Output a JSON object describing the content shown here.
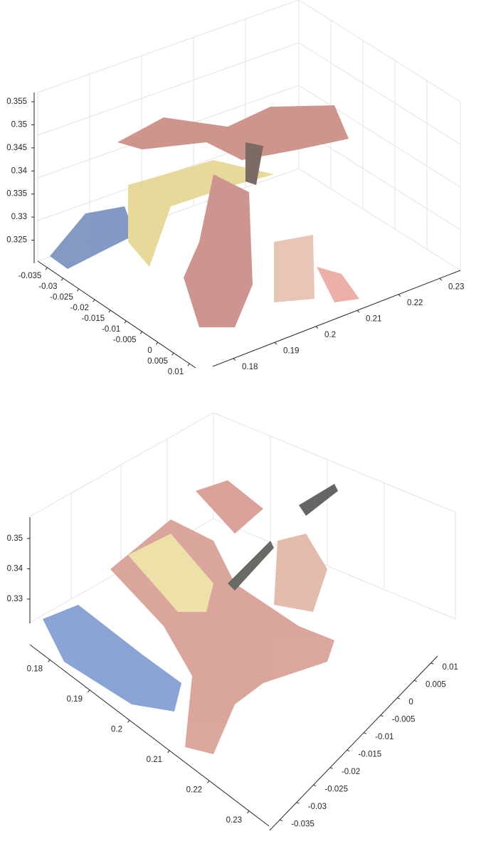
{
  "chart_data": [
    {
      "type": "scatter3d",
      "xlim": [
        0.175,
        0.235
      ],
      "xticks": [
        0.18,
        0.19,
        0.2,
        0.21,
        0.22,
        0.23
      ],
      "ylim": [
        -0.038,
        0.012
      ],
      "yticks": [
        0.01,
        0.005,
        0,
        -0.005,
        -0.01,
        -0.015,
        -0.02,
        -0.025,
        -0.03,
        -0.035
      ],
      "zlim": [
        0.32,
        0.357
      ],
      "zticks": [
        0.325,
        0.33,
        0.335,
        0.34,
        0.345,
        0.35,
        0.355
      ],
      "grid": true
    },
    {
      "type": "scatter3d",
      "xlim": [
        0.175,
        0.235
      ],
      "xticks": [
        0.18,
        0.19,
        0.2,
        0.21,
        0.22,
        0.23
      ],
      "ylim": [
        -0.038,
        0.012
      ],
      "yticks": [
        0.01,
        0.005,
        0,
        -0.005,
        -0.01,
        -0.015,
        -0.02,
        -0.025,
        -0.03,
        -0.035
      ],
      "zlim": [
        0.322,
        0.357
      ],
      "zticks": [
        0.33,
        0.34,
        0.35
      ],
      "grid": true
    }
  ]
}
